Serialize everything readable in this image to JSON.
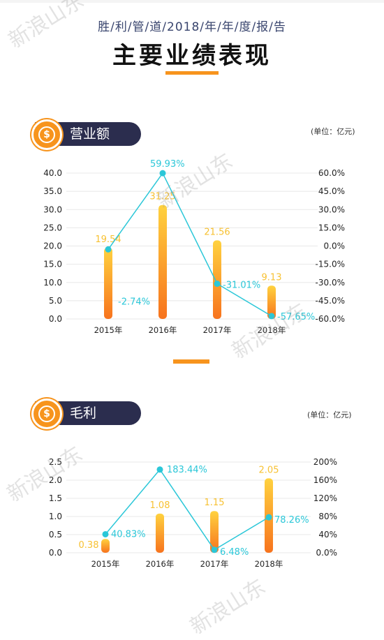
{
  "header": {
    "subtitle": "胜/利/管/道/2018/年/年/度/报/告",
    "title": "主要业绩表现"
  },
  "watermark": "新浪山东",
  "colors": {
    "navy": "#2b2d4e",
    "orange": "#f7941d",
    "bar_top": "#ffd23f",
    "bar_bottom": "#f7731d",
    "line": "#2bc7d8",
    "grid": "#e8e8e8"
  },
  "sections": [
    {
      "label": "营业额",
      "unit": "(单位：亿元)",
      "icon": "dollar-coin-icon"
    },
    {
      "label": "毛利",
      "unit": "(单位：亿元)",
      "icon": "dollar-coin-icon"
    }
  ],
  "chart_data": [
    {
      "type": "bar",
      "categories": [
        "2015年",
        "2016年",
        "2017年",
        "2018年"
      ],
      "series": [
        {
          "values": [
            19.54,
            31.25,
            21.56,
            9.13
          ],
          "labels": [
            "19.54",
            "31.25",
            "21.56",
            "9.13"
          ]
        },
        {
          "type": "line",
          "axis": "right",
          "values": [
            -2.74,
            59.93,
            -31.01,
            -57.65
          ],
          "labels": [
            "-2.74%",
            "59.93%",
            "-31.01%",
            "-57.65%"
          ]
        }
      ],
      "y_left": {
        "ticks": [
          "40.0",
          "35.0",
          "30.0",
          "25.0",
          "20.0",
          "15.0",
          "10.0",
          "5.0",
          "0.0"
        ],
        "range": [
          0,
          40
        ]
      },
      "y_right": {
        "ticks": [
          "60.0%",
          "45.0%",
          "30.0%",
          "15.0%",
          "0.0%",
          "-15.0%",
          "-30.0%",
          "-45.0%",
          "-60.0%"
        ],
        "range": [
          -60,
          60
        ]
      },
      "grid": true
    },
    {
      "type": "bar",
      "categories": [
        "2015年",
        "2016年",
        "2017年",
        "2018年"
      ],
      "series": [
        {
          "values": [
            0.38,
            1.08,
            1.15,
            2.05
          ],
          "labels": [
            "0.38",
            "1.08",
            "1.15",
            "2.05"
          ]
        },
        {
          "type": "line",
          "axis": "right",
          "values": [
            40.83,
            183.44,
            6.48,
            78.26
          ],
          "labels": [
            "40.83%",
            "183.44%",
            "6.48%",
            "78.26%"
          ]
        }
      ],
      "y_left": {
        "ticks": [
          "2.5",
          "2.0",
          "1.5",
          "1.0",
          "0.5",
          "0.0"
        ],
        "range": [
          0,
          2.5
        ]
      },
      "y_right": {
        "ticks": [
          "200%",
          "160%",
          "120%",
          "80%",
          "40%",
          "0.0%"
        ],
        "range": [
          0,
          200
        ]
      },
      "grid": true
    }
  ]
}
